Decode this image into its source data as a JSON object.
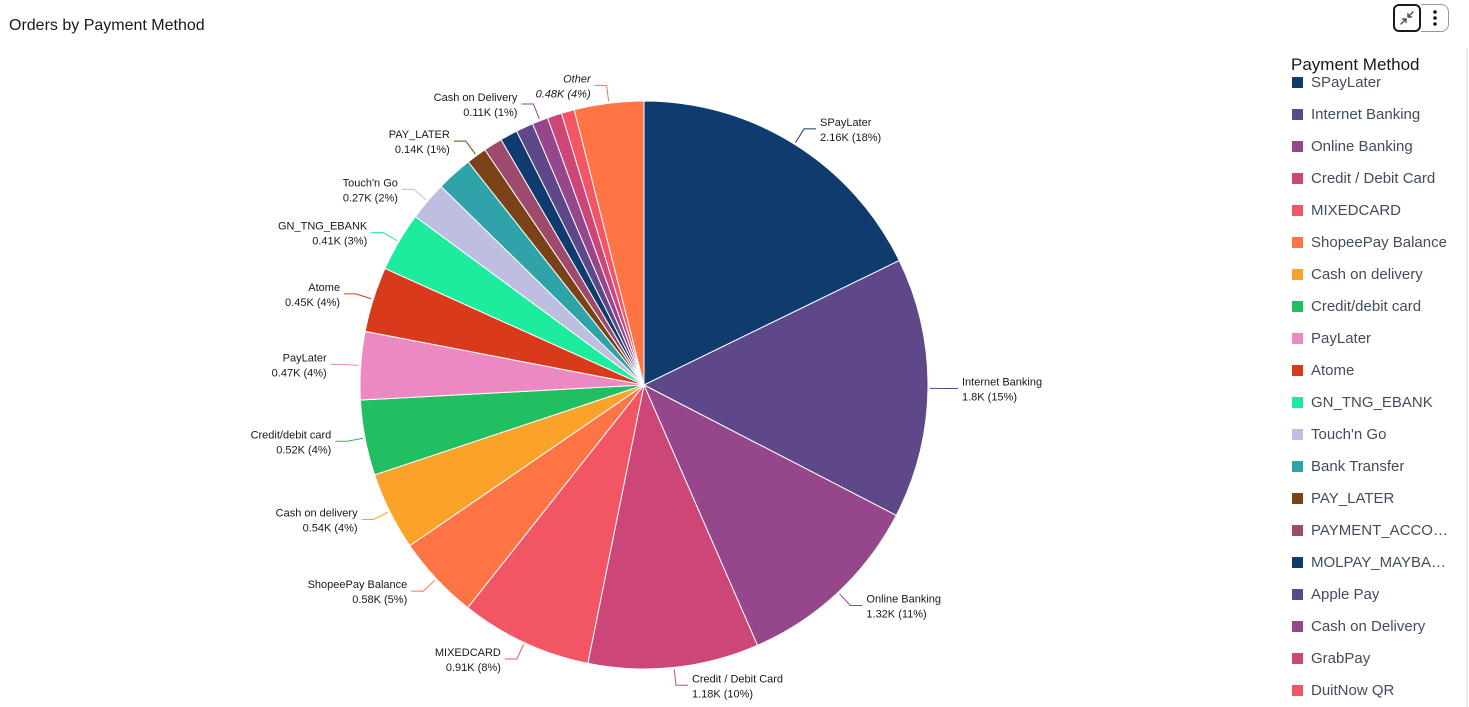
{
  "header": {
    "title": "Orders by Payment Method"
  },
  "toolbar": {
    "collapse_icon": "collapse-arrows-icon",
    "more_icon": "more-vertical-icon"
  },
  "legend": {
    "title": "Payment Method",
    "items": [
      {
        "label": "SPayLater",
        "color": "#0f3b6e"
      },
      {
        "label": "Internet Banking",
        "color": "#5e4889"
      },
      {
        "label": "Online Banking",
        "color": "#96468a"
      },
      {
        "label": "Credit / Debit Card",
        "color": "#cc4677"
      },
      {
        "label": "MIXEDCARD",
        "color": "#f25664"
      },
      {
        "label": "ShopeePay Balance",
        "color": "#ff7444"
      },
      {
        "label": "Cash on delivery",
        "color": "#fba22a"
      },
      {
        "label": "Credit/debit card",
        "color": "#22bf62"
      },
      {
        "label": "PayLater",
        "color": "#ec89c3"
      },
      {
        "label": "Atome",
        "color": "#d93a1c"
      },
      {
        "label": "GN_TNG_EBANK",
        "color": "#1deb9e"
      },
      {
        "label": "Touch'n Go",
        "color": "#bebfe0"
      },
      {
        "label": "Bank Transfer",
        "color": "#2ea4a8"
      },
      {
        "label": "PAY_LATER",
        "color": "#7b4217"
      },
      {
        "label": "PAYMENT_ACCOUNT",
        "color": "#9e4a6d"
      },
      {
        "label": "MOLPAY_MAYBAN…",
        "color": "#0f3b6e"
      },
      {
        "label": "Apple Pay",
        "color": "#5e4889"
      },
      {
        "label": "Cash on Delivery",
        "color": "#96468a"
      },
      {
        "label": "GrabPay",
        "color": "#cc4677"
      },
      {
        "label": "DuitNow QR",
        "color": "#f25664"
      }
    ]
  },
  "chart_data": {
    "type": "pie",
    "title": "Orders by Payment Method",
    "legend_position": "right",
    "slices": [
      {
        "name": "SPayLater",
        "value": 2.16,
        "display": "2.16K (18%)",
        "color": "#0f3b6e",
        "label": true
      },
      {
        "name": "Internet Banking",
        "value": 1.8,
        "display": "1.8K (15%)",
        "color": "#5e4889",
        "label": true
      },
      {
        "name": "Online Banking",
        "value": 1.32,
        "display": "1.32K (11%)",
        "color": "#96468a",
        "label": true
      },
      {
        "name": "Credit / Debit Card",
        "value": 1.18,
        "display": "1.18K (10%)",
        "color": "#cc4677",
        "label": true
      },
      {
        "name": "MIXEDCARD",
        "value": 0.91,
        "display": "0.91K (8%)",
        "color": "#f25664",
        "label": true
      },
      {
        "name": "ShopeePay Balance",
        "value": 0.58,
        "display": "0.58K (5%)",
        "color": "#ff7444",
        "label": true
      },
      {
        "name": "Cash on delivery",
        "value": 0.54,
        "display": "0.54K (4%)",
        "color": "#fba22a",
        "label": true
      },
      {
        "name": "Credit/debit card",
        "value": 0.52,
        "display": "0.52K (4%)",
        "color": "#22bf62",
        "label": true
      },
      {
        "name": "PayLater",
        "value": 0.47,
        "display": "0.47K (4%)",
        "color": "#ec89c3",
        "label": true
      },
      {
        "name": "Atome",
        "value": 0.45,
        "display": "0.45K (4%)",
        "color": "#d93a1c",
        "label": true
      },
      {
        "name": "GN_TNG_EBANK",
        "value": 0.41,
        "display": "0.41K (3%)",
        "color": "#1deb9e",
        "label": true
      },
      {
        "name": "Touch'n Go",
        "value": 0.27,
        "display": "0.27K (2%)",
        "color": "#bebfe0",
        "label": true
      },
      {
        "name": "Bank Transfer",
        "value": 0.25,
        "display": "",
        "color": "#2ea4a8",
        "label": false
      },
      {
        "name": "PAY_LATER",
        "value": 0.14,
        "display": "0.14K (1%)",
        "color": "#7b4217",
        "label": true
      },
      {
        "name": "PAYMENT_ACCOUNT",
        "value": 0.13,
        "display": "",
        "color": "#9e4a6d",
        "label": false
      },
      {
        "name": "MOLPAY_MAYBAN…",
        "value": 0.12,
        "display": "",
        "color": "#0f3b6e",
        "label": false
      },
      {
        "name": "Apple Pay",
        "value": 0.12,
        "display": "",
        "color": "#5e4889",
        "label": false
      },
      {
        "name": "Cash on Delivery",
        "value": 0.11,
        "display": "0.11K (1%)",
        "color": "#96468a",
        "label": true
      },
      {
        "name": "GrabPay",
        "value": 0.1,
        "display": "",
        "color": "#cc4677",
        "label": false
      },
      {
        "name": "DuitNow QR",
        "value": 0.09,
        "display": "",
        "color": "#f25664",
        "label": false
      },
      {
        "name": "Other",
        "value": 0.48,
        "display": "0.48K (4%)",
        "color": "#ff7444",
        "label": true,
        "italic": true
      }
    ]
  }
}
